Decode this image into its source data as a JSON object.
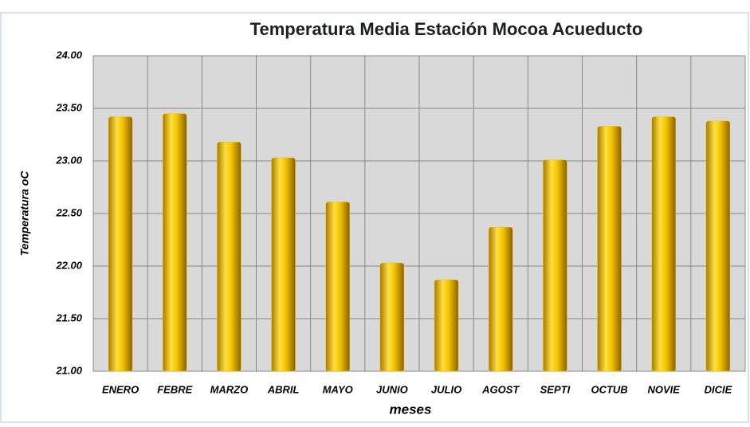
{
  "chart_data": {
    "type": "bar",
    "title": "Temperatura Media Estación Mocoa Acueducto",
    "x_label": "meses",
    "y_label": "Temperatura oC",
    "categories": [
      "ENERO",
      "FEBRE",
      "MARZO",
      "ABRIL",
      "MAYO",
      "JUNIO",
      "JULIO",
      "AGOST",
      "SEPTI",
      "OCTUB",
      "NOVIE",
      "DICIE"
    ],
    "values": [
      23.42,
      23.45,
      23.18,
      23.03,
      22.61,
      22.03,
      21.87,
      22.37,
      23.01,
      23.33,
      23.42,
      23.38
    ],
    "color": "#f2c200",
    "ylim": [
      21,
      24
    ],
    "yticks": [
      {
        "value": 21,
        "label": "21.00"
      },
      {
        "value": 21.5,
        "label": "21.50"
      },
      {
        "value": 22,
        "label": "22.00"
      },
      {
        "value": 22.5,
        "label": "22.50"
      },
      {
        "value": 23,
        "label": "23.00"
      },
      {
        "value": 23.5,
        "label": "23.50"
      },
      {
        "value": 24,
        "label": "24.00"
      }
    ],
    "grid": true
  }
}
